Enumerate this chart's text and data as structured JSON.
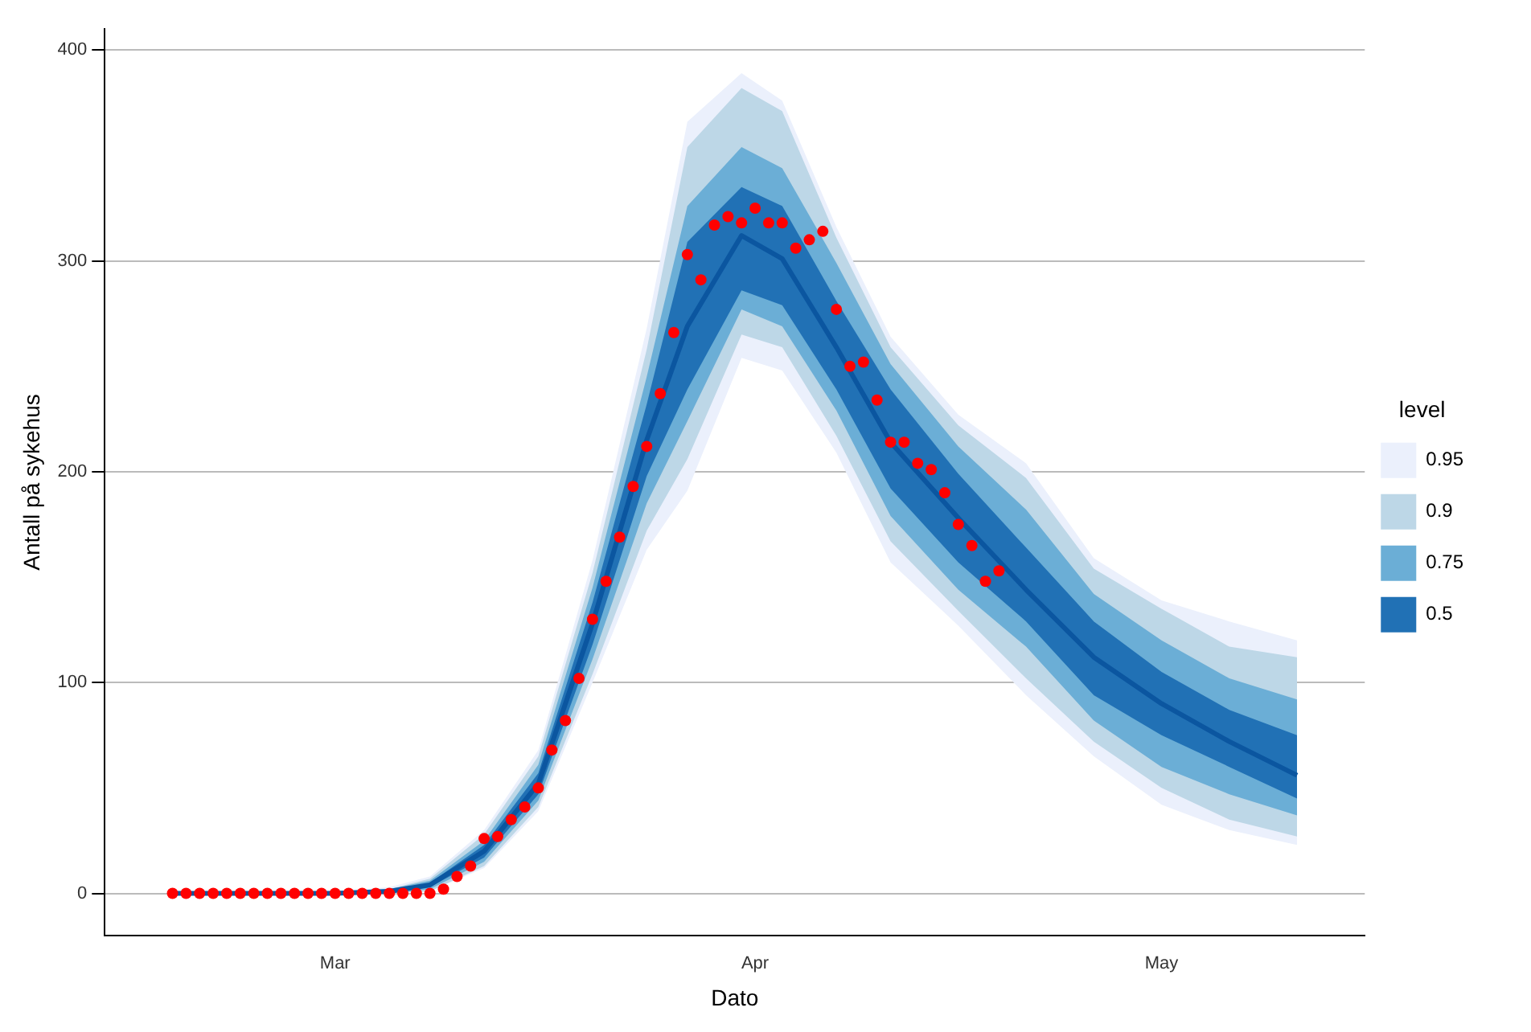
{
  "chart_data": {
    "type": "line",
    "xlabel": "Dato",
    "ylabel": "Antall på sykehus",
    "legend_title": "level",
    "legend": "right",
    "grid": "y",
    "xlim": [
      "--02-13",
      "--05-16"
    ],
    "xticks": [
      {
        "value": "--03-01",
        "label": "Mar"
      },
      {
        "value": "--04-01",
        "label": "Apr"
      },
      {
        "value": "--05-01",
        "label": "May"
      }
    ],
    "ylim": [
      -20,
      410
    ],
    "yticks": [
      0,
      100,
      200,
      300,
      400
    ],
    "series": [
      {
        "type": "line",
        "name": "0.95",
        "color": "#ebf0fc",
        "x": [
          "--02-18",
          "--03-01",
          "--03-05",
          "--03-08",
          "--03-12",
          "--03-16",
          "--03-20",
          "--03-24",
          "--03-27",
          "--03-31",
          "--04-03",
          "--04-07",
          "--04-11",
          "--04-16",
          "--04-21",
          "--04-26",
          "--05-01",
          "--05-06",
          "--05-11"
        ],
        "values": [
          null,
          null,
          null,
          null,
          null,
          null,
          null,
          null,
          null,
          null,
          null,
          null,
          null,
          null,
          null,
          null,
          null,
          null,
          null
        ],
        "lower": [
          0,
          0,
          0,
          1,
          12,
          39,
          100,
          163,
          191,
          254,
          248,
          209,
          157,
          127,
          94,
          65,
          42,
          30,
          23
        ],
        "upper": [
          0,
          1,
          3,
          8,
          30,
          68,
          158,
          268,
          366,
          389,
          376,
          316,
          264,
          227,
          204,
          159,
          139,
          129,
          120
        ]
      },
      {
        "type": "line",
        "name": "0.9",
        "color": "#bdd7e7",
        "x": [
          "--02-18",
          "--03-01",
          "--03-05",
          "--03-08",
          "--03-12",
          "--03-16",
          "--03-20",
          "--03-24",
          "--03-27",
          "--03-31",
          "--04-03",
          "--04-07",
          "--04-11",
          "--04-16",
          "--04-21",
          "--04-26",
          "--05-01",
          "--05-06",
          "--05-11"
        ],
        "values": [
          null,
          null,
          null,
          null,
          null,
          null,
          null,
          null,
          null,
          null,
          null,
          null,
          null,
          null,
          null,
          null,
          null,
          null,
          null
        ],
        "lower": [
          0,
          0,
          0,
          1,
          13,
          41,
          104,
          172,
          206,
          265,
          259,
          217,
          167,
          134,
          102,
          72,
          50,
          35,
          27
        ],
        "upper": [
          0,
          1,
          2,
          7,
          28,
          65,
          152,
          258,
          354,
          382,
          371,
          311,
          259,
          222,
          197,
          154,
          135,
          117,
          112
        ]
      },
      {
        "type": "line",
        "name": "0.75",
        "color": "#6baed6",
        "x": [
          "--02-18",
          "--03-01",
          "--03-05",
          "--03-08",
          "--03-12",
          "--03-16",
          "--03-20",
          "--03-24",
          "--03-27",
          "--03-31",
          "--04-03",
          "--04-07",
          "--04-11",
          "--04-16",
          "--04-21",
          "--04-26",
          "--05-01",
          "--05-06",
          "--05-11"
        ],
        "values": [
          null,
          null,
          null,
          null,
          null,
          null,
          null,
          null,
          null,
          null,
          null,
          null,
          null,
          null,
          null,
          null,
          null,
          null,
          null
        ],
        "lower": [
          0,
          0,
          0,
          2,
          15,
          44,
          111,
          185,
          224,
          277,
          269,
          229,
          179,
          144,
          117,
          82,
          60,
          47,
          37
        ],
        "upper": [
          0,
          0,
          2,
          6,
          25,
          61,
          145,
          245,
          326,
          354,
          344,
          299,
          251,
          212,
          182,
          142,
          120,
          102,
          92
        ]
      },
      {
        "type": "line",
        "name": "0.5",
        "color": "#2171b5",
        "x": [
          "--02-18",
          "--03-01",
          "--03-05",
          "--03-08",
          "--03-12",
          "--03-16",
          "--03-20",
          "--03-24",
          "--03-27",
          "--03-31",
          "--04-03",
          "--04-07",
          "--04-11",
          "--04-16",
          "--04-21",
          "--04-26",
          "--05-01",
          "--05-06",
          "--05-11"
        ],
        "values": [
          null,
          null,
          null,
          null,
          null,
          null,
          null,
          null,
          null,
          null,
          null,
          null,
          null,
          null,
          null,
          null,
          null,
          null,
          null
        ],
        "lower": [
          0,
          0,
          0,
          3,
          17,
          47,
          118,
          198,
          239,
          286,
          279,
          239,
          192,
          157,
          129,
          94,
          75,
          60,
          45
        ],
        "upper": [
          0,
          0,
          1,
          5,
          23,
          57,
          138,
          232,
          309,
          335,
          326,
          281,
          239,
          199,
          164,
          129,
          105,
          87,
          75
        ]
      },
      {
        "type": "line",
        "color": "#0b56a0",
        "x": [
          "--02-18",
          "--03-01",
          "--03-05",
          "--03-08",
          "--03-12",
          "--03-16",
          "--03-20",
          "--03-24",
          "--03-27",
          "--03-31",
          "--04-03",
          "--04-07",
          "--04-11",
          "--04-16",
          "--04-21",
          "--04-26",
          "--05-01",
          "--05-06",
          "--05-11"
        ],
        "values": [
          0,
          0,
          1,
          4,
          20,
          52,
          128,
          215,
          269,
          312,
          301,
          259,
          214,
          178,
          144,
          112,
          90,
          72,
          56
        ]
      },
      {
        "type": "scatter",
        "color": "#ff0000",
        "marker": "circle",
        "x": [
          "--02-18",
          "--02-19",
          "--02-20",
          "--02-21",
          "--02-22",
          "--02-23",
          "--02-24",
          "--02-25",
          "--02-26",
          "--02-27",
          "--02-28",
          "--02-29",
          "--03-01",
          "--03-02",
          "--03-03",
          "--03-04",
          "--03-05",
          "--03-06",
          "--03-07",
          "--03-08",
          "--03-09",
          "--03-10",
          "--03-11",
          "--03-12",
          "--03-13",
          "--03-14",
          "--03-15",
          "--03-16",
          "--03-17",
          "--03-18",
          "--03-19",
          "--03-20",
          "--03-21",
          "--03-22",
          "--03-23",
          "--03-24",
          "--03-25",
          "--03-26",
          "--03-27",
          "--03-28",
          "--03-29",
          "--03-30",
          "--03-31",
          "--04-01",
          "--04-02",
          "--04-03",
          "--04-04",
          "--04-05",
          "--04-06",
          "--04-07",
          "--04-08",
          "--04-09",
          "--04-10",
          "--04-11",
          "--04-12",
          "--04-13",
          "--04-14",
          "--04-15",
          "--04-16",
          "--04-17",
          "--04-18",
          "--04-19"
        ],
        "values": [
          0,
          0,
          0,
          0,
          0,
          0,
          0,
          0,
          0,
          0,
          0,
          0,
          0,
          0,
          0,
          0,
          0,
          0,
          0,
          0,
          2,
          8,
          13,
          26,
          27,
          35,
          41,
          50,
          68,
          82,
          102,
          130,
          148,
          169,
          193,
          212,
          237,
          266,
          303,
          291,
          317,
          321,
          318,
          325,
          318,
          318,
          306,
          310,
          314,
          277,
          250,
          252,
          234,
          214,
          214,
          204,
          201,
          190,
          175,
          165,
          148,
          153
        ]
      }
    ]
  }
}
